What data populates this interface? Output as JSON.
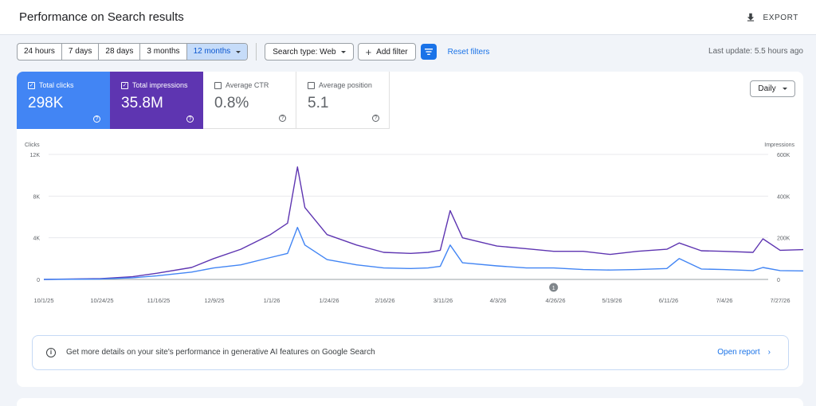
{
  "header": {
    "title": "Performance on Search results",
    "export_label": "EXPORT"
  },
  "filters": {
    "ranges": [
      "24 hours",
      "7 days",
      "28 days",
      "3 months",
      "12 months"
    ],
    "active_range": "12 months",
    "search_type": "Search type: Web",
    "add_filter": "Add filter",
    "reset": "Reset filters",
    "last_update": "Last update: 5.5 hours ago"
  },
  "metrics": {
    "clicks": {
      "label": "Total clicks",
      "value": "298K",
      "checked": true
    },
    "impressions": {
      "label": "Total impressions",
      "value": "35.8M",
      "checked": true
    },
    "ctr": {
      "label": "Average CTR",
      "value": "0.8%",
      "checked": false
    },
    "position": {
      "label": "Average position",
      "value": "5.1",
      "checked": false
    }
  },
  "granularity": "Daily",
  "banner": {
    "text": "Get more details on your site's performance in generative AI features on Google Search",
    "link": "Open report"
  },
  "colors": {
    "clicks": "#4285f4",
    "impressions": "#5e35b1",
    "accent": "#1a73e8"
  },
  "chart_data": {
    "type": "line",
    "left_axis_label": "Clicks",
    "right_axis_label": "Impressions",
    "left_ticks": [
      "0",
      "4K",
      "8K",
      "12K"
    ],
    "left_ylim": [
      0,
      12000
    ],
    "right_ticks": [
      "0",
      "200K",
      "400K",
      "600K"
    ],
    "right_ylim": [
      0,
      600000
    ],
    "x_tick_labels": [
      "10/1/25",
      "10/24/25",
      "11/16/25",
      "12/9/25",
      "1/1/26",
      "1/24/26",
      "2/16/26",
      "3/11/26",
      "4/3/26",
      "4/26/26",
      "5/19/26",
      "6/11/26",
      "7/4/26",
      "7/27/26"
    ],
    "annotation_marker": "1",
    "annotation_at": "4/26/26",
    "grid": true,
    "series": [
      {
        "name": "Total clicks",
        "axis": "left",
        "x": [
          "10/1/25",
          "10/24/25",
          "11/6/25",
          "11/16/25",
          "11/30/25",
          "12/9/25",
          "12/20/25",
          "1/1/26",
          "1/8/26",
          "1/12/26",
          "1/15/26",
          "1/24/26",
          "2/5/26",
          "2/16/26",
          "2/27/26",
          "3/6/26",
          "3/11/26",
          "3/15/26",
          "3/20/26",
          "4/3/26",
          "4/15/26",
          "4/26/26",
          "5/8/26",
          "5/19/26",
          "5/30/26",
          "6/11/26",
          "6/16/26",
          "6/25/26",
          "7/4/26",
          "7/16/26",
          "7/20/26",
          "7/27/26",
          "8/10/26"
        ],
        "values": [
          0,
          40,
          160,
          350,
          700,
          1100,
          1400,
          2100,
          2500,
          5000,
          3300,
          1900,
          1400,
          1100,
          1050,
          1100,
          1250,
          3300,
          1600,
          1300,
          1100,
          1100,
          950,
          900,
          950,
          1050,
          2000,
          1000,
          950,
          850,
          1150,
          850,
          800
        ]
      },
      {
        "name": "Total impressions",
        "axis": "left",
        "x": [
          "10/1/25",
          "10/24/25",
          "11/6/25",
          "11/16/25",
          "11/30/25",
          "12/9/25",
          "12/20/25",
          "1/1/26",
          "1/8/26",
          "1/12/26",
          "1/15/26",
          "1/24/26",
          "2/5/26",
          "2/16/26",
          "2/27/26",
          "3/6/26",
          "3/11/26",
          "3/15/26",
          "3/20/26",
          "4/3/26",
          "4/15/26",
          "4/26/26",
          "5/8/26",
          "5/19/26",
          "5/30/26",
          "6/11/26",
          "6/16/26",
          "6/25/26",
          "7/4/26",
          "7/16/26",
          "7/20/26",
          "7/27/26",
          "8/10/26"
        ],
        "values": [
          0,
          80,
          260,
          600,
          1150,
          2000,
          2900,
          4300,
          5400,
          10800,
          6900,
          4300,
          3300,
          2600,
          2500,
          2600,
          2800,
          6600,
          4000,
          3200,
          2950,
          2700,
          2700,
          2400,
          2700,
          2900,
          3500,
          2750,
          2700,
          2600,
          3900,
          2800,
          2900
        ]
      }
    ]
  }
}
